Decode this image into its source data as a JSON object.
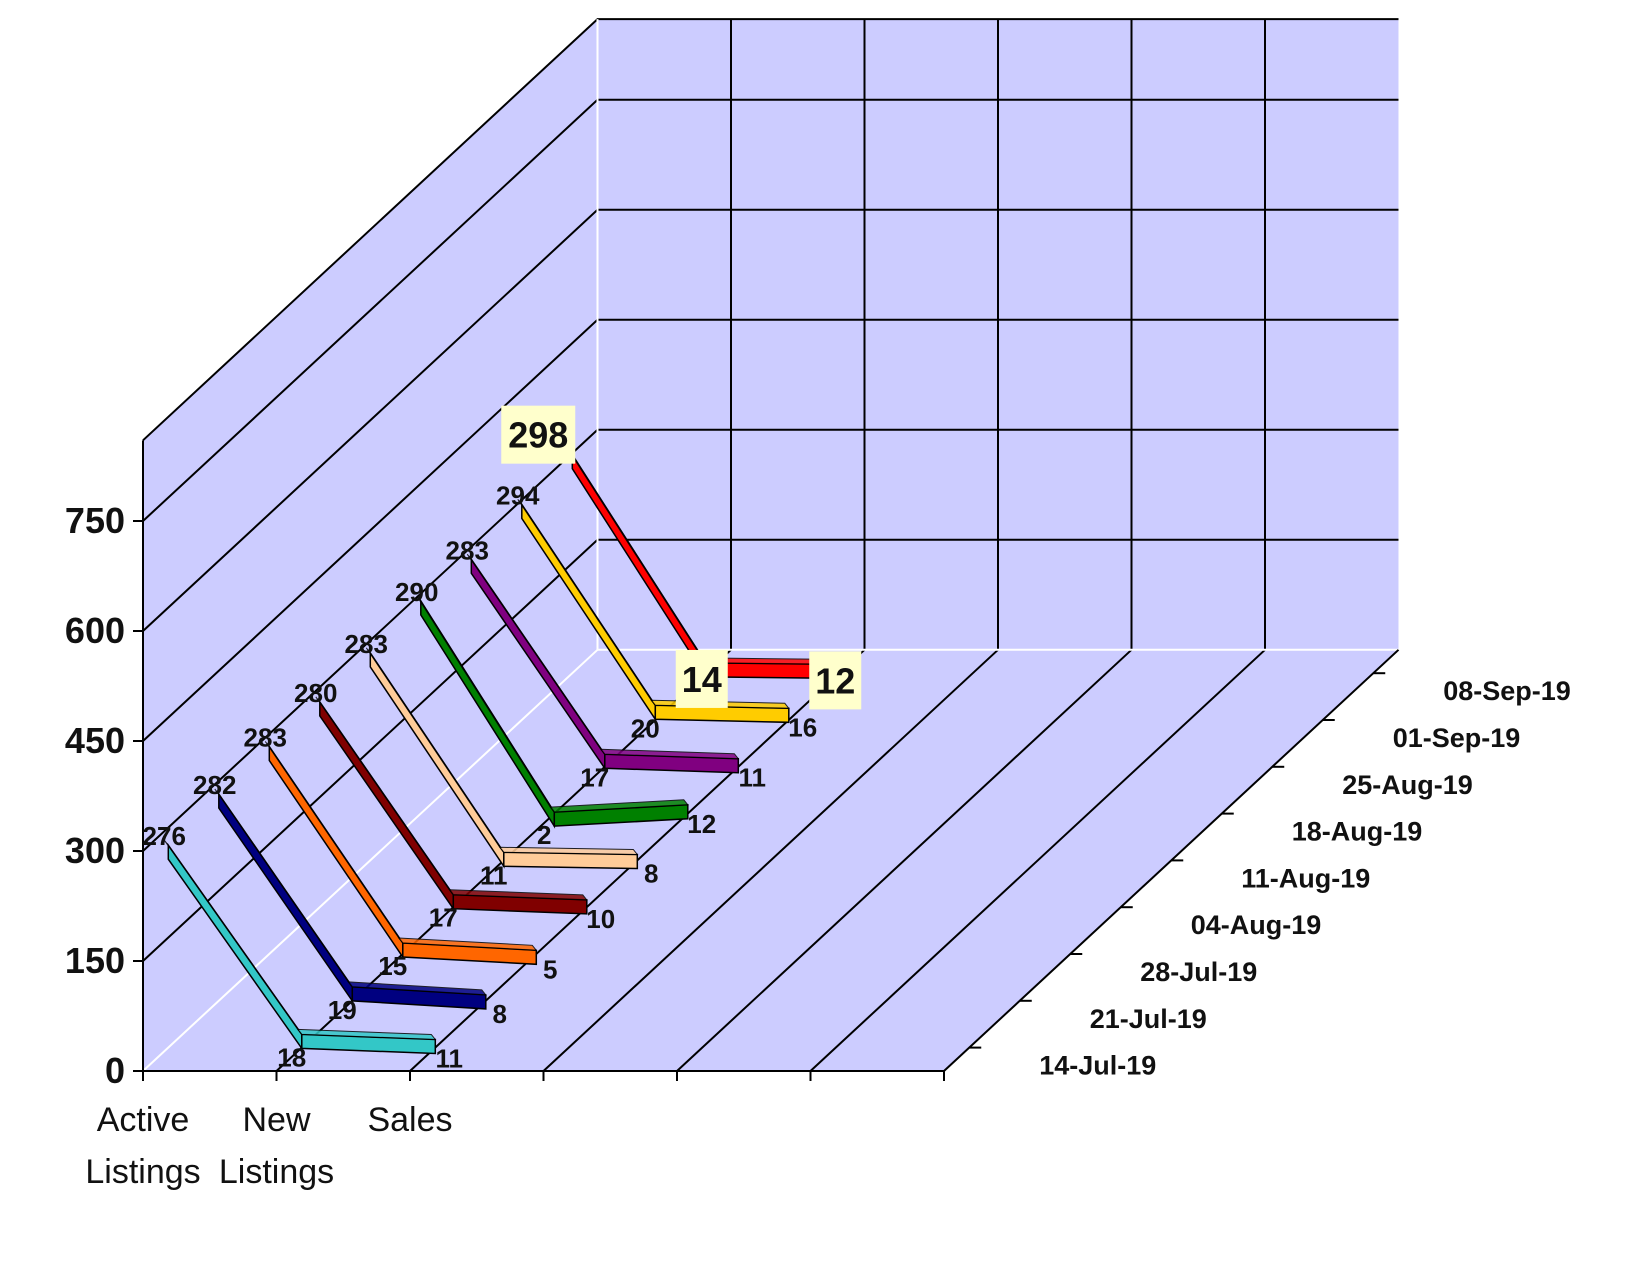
{
  "chart_data": {
    "type": "line",
    "style": "3d",
    "categories": [
      "Active Listings",
      "New Listings",
      "Sales"
    ],
    "category_lines": [
      [
        "Active",
        "Listings"
      ],
      [
        "New",
        "Listings"
      ],
      [
        "Sales"
      ]
    ],
    "y_ticks": [
      "0",
      "150",
      "300",
      "450",
      "600",
      "750"
    ],
    "ylim": [
      0,
      750
    ],
    "grid": true,
    "series": [
      {
        "name": "14-Jul-19",
        "values": [
          276,
          18,
          11
        ],
        "color": "#33c7c7"
      },
      {
        "name": "21-Jul-19",
        "values": [
          282,
          19,
          8
        ],
        "color": "#000080"
      },
      {
        "name": "28-Jul-19",
        "values": [
          283,
          15,
          5
        ],
        "color": "#ff6600"
      },
      {
        "name": "04-Aug-19",
        "values": [
          280,
          17,
          10
        ],
        "color": "#800000"
      },
      {
        "name": "11-Aug-19",
        "values": [
          283,
          11,
          8
        ],
        "color": "#ffcc99"
      },
      {
        "name": "18-Aug-19",
        "values": [
          290,
          2,
          12
        ],
        "color": "#008000"
      },
      {
        "name": "25-Aug-19",
        "values": [
          283,
          17,
          11
        ],
        "color": "#800080"
      },
      {
        "name": "01-Sep-19",
        "values": [
          294,
          20,
          16
        ],
        "color": "#ffcc00"
      },
      {
        "name": "08-Sep-19",
        "values": [
          298,
          14,
          12
        ],
        "color": "#ff0000"
      }
    ],
    "colors": {
      "wall": "#ccccff",
      "grid": "#000000",
      "highlight_label_bg": "#ffffcc"
    }
  }
}
